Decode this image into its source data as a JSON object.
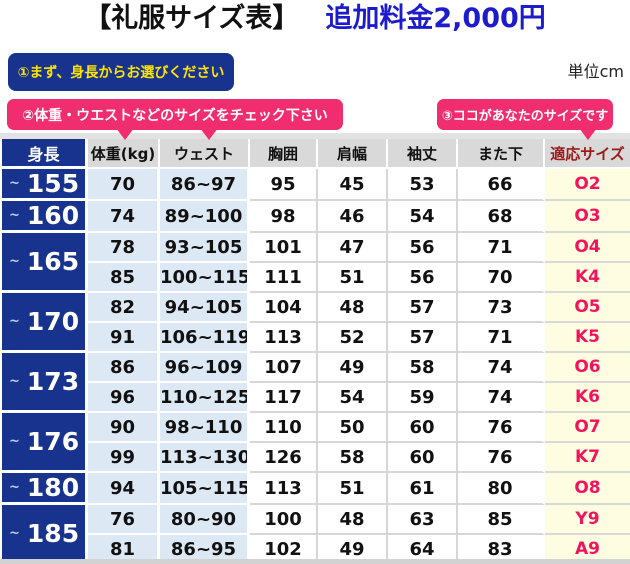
{
  "title": {
    "main": "【礼服サイズ表】",
    "fee": "追加料金2,000円"
  },
  "unit_label": "単位cm",
  "callouts": {
    "step1": "①まず、身長からお選びください",
    "step2": "②体重・ウエストなどのサイズをチェック下さい",
    "step3": "③ココがあなたのサイズです"
  },
  "table": {
    "headers": [
      "身長",
      "体重(kg)",
      "ウェスト",
      "胸囲",
      "肩幅",
      "袖丈",
      "また下",
      "適応サイズ"
    ],
    "height_groups": [
      {
        "height": "155",
        "rows": [
          [
            "70",
            "86~97",
            "95",
            "45",
            "53",
            "66",
            "O2"
          ]
        ]
      },
      {
        "height": "160",
        "rows": [
          [
            "74",
            "89~100",
            "98",
            "46",
            "54",
            "68",
            "O3"
          ]
        ]
      },
      {
        "height": "165",
        "rows": [
          [
            "78",
            "93~105",
            "101",
            "47",
            "56",
            "71",
            "O4"
          ],
          [
            "85",
            "100~115",
            "111",
            "51",
            "56",
            "70",
            "K4"
          ]
        ]
      },
      {
        "height": "170",
        "rows": [
          [
            "82",
            "94~105",
            "104",
            "48",
            "57",
            "73",
            "O5"
          ],
          [
            "91",
            "106~119",
            "113",
            "52",
            "57",
            "71",
            "K5"
          ]
        ]
      },
      {
        "height": "173",
        "rows": [
          [
            "86",
            "96~109",
            "107",
            "49",
            "58",
            "74",
            "O6"
          ],
          [
            "96",
            "110~125",
            "117",
            "54",
            "59",
            "74",
            "K6"
          ]
        ]
      },
      {
        "height": "176",
        "rows": [
          [
            "90",
            "98~110",
            "110",
            "50",
            "60",
            "76",
            "O7"
          ],
          [
            "99",
            "113~130",
            "126",
            "58",
            "60",
            "76",
            "K7"
          ]
        ]
      },
      {
        "height": "180",
        "rows": [
          [
            "94",
            "105~115",
            "113",
            "51",
            "61",
            "80",
            "O8"
          ]
        ]
      },
      {
        "height": "185",
        "rows": [
          [
            "76",
            "80~90",
            "100",
            "48",
            "63",
            "85",
            "Y9"
          ],
          [
            "81",
            "86~95",
            "102",
            "49",
            "64",
            "83",
            "A9"
          ]
        ]
      }
    ]
  },
  "colors": {
    "navy": "#17338e",
    "pink": "#f02d6e",
    "fee_blue": "#1d1ccd",
    "callout1_yellow": "#ffe400",
    "light_blue": "#dce9f5",
    "light_yellow": "#fffde1",
    "header_gray": "#d9d9d9",
    "size_pink": "#f2135d",
    "size_header_red": "#9b1b1b"
  }
}
